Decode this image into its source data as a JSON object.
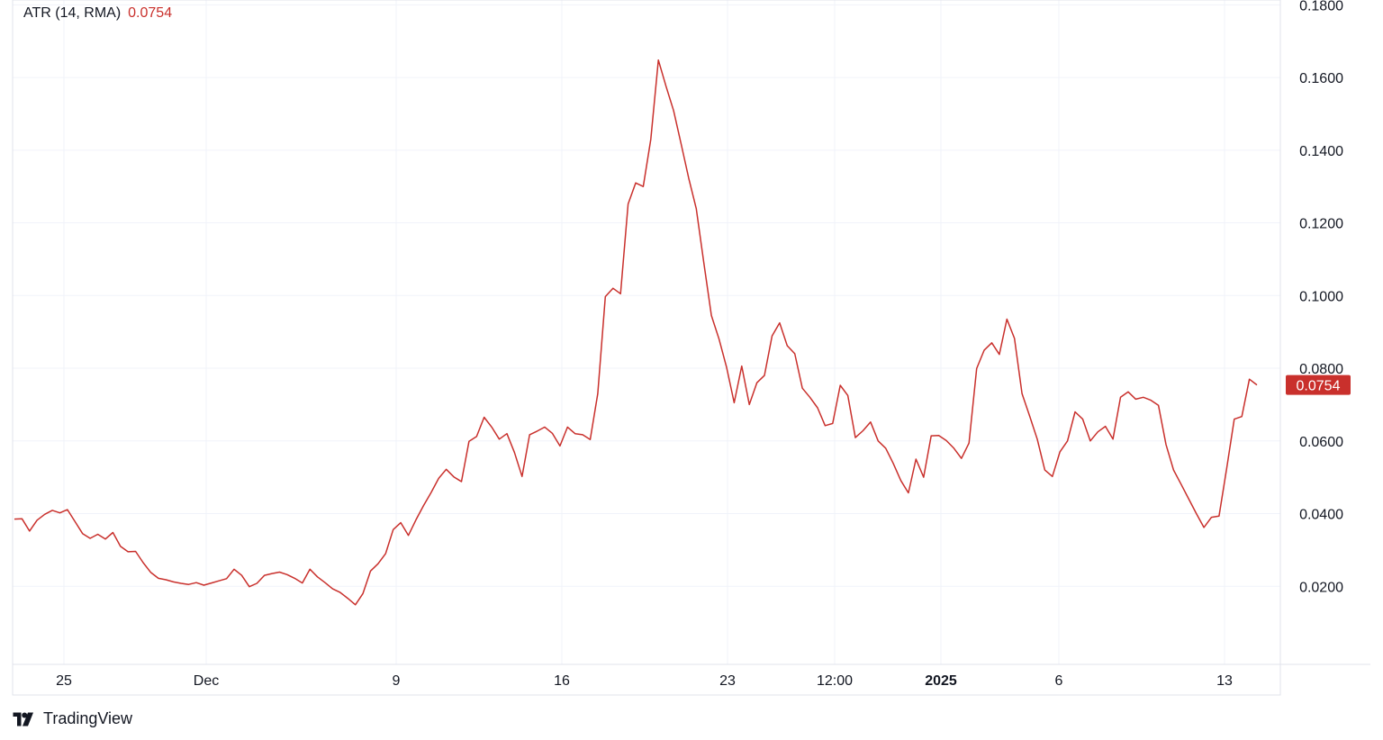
{
  "indicator": {
    "name": "ATR (14, RMA)",
    "value": "0.0754"
  },
  "brand": {
    "name": "TradingView"
  },
  "colors": {
    "line": "#c9302c",
    "grid": "#f0f3fa",
    "text": "#131722"
  },
  "chart_data": {
    "type": "line",
    "title": "ATR (14, RMA)",
    "xlabel": "",
    "ylabel": "",
    "ylim": [
      0.0,
      0.18
    ],
    "y_ticks": [
      "0.0200",
      "0.0400",
      "0.0600",
      "0.0800",
      "0.1000",
      "0.1200",
      "0.1400",
      "0.1600",
      "0.1800"
    ],
    "x_ticks": [
      "25",
      "Dec",
      "9",
      "16",
      "23",
      "12:00",
      "2025",
      "6",
      "13"
    ],
    "last_value_label": "0.0754",
    "grid": true,
    "series": [
      {
        "values": [
          0.0385,
          0.0386,
          0.0352,
          0.0382,
          0.0398,
          0.0409,
          0.0402,
          0.0411,
          0.0378,
          0.0345,
          0.0332,
          0.0343,
          0.033,
          0.0348,
          0.031,
          0.0295,
          0.0296,
          0.0265,
          0.0238,
          0.0222,
          0.0218,
          0.0212,
          0.0208,
          0.0205,
          0.021,
          0.0203,
          0.0209,
          0.0215,
          0.0221,
          0.0247,
          0.023,
          0.0199,
          0.0208,
          0.023,
          0.0235,
          0.0239,
          0.0232,
          0.0222,
          0.0209,
          0.0247,
          0.0226,
          0.021,
          0.0193,
          0.0183,
          0.0167,
          0.0149,
          0.018,
          0.0242,
          0.0262,
          0.029,
          0.0356,
          0.0375,
          0.034,
          0.0383,
          0.0422,
          0.0458,
          0.0497,
          0.0522,
          0.0501,
          0.0488,
          0.0599,
          0.0612,
          0.0665,
          0.0638,
          0.0605,
          0.062,
          0.0568,
          0.0502,
          0.0617,
          0.0627,
          0.0638,
          0.0621,
          0.0586,
          0.0638,
          0.062,
          0.0617,
          0.0604,
          0.073,
          0.0997,
          0.102,
          0.1005,
          0.1252,
          0.131,
          0.13,
          0.143,
          0.1648,
          0.1576,
          0.1509,
          0.1417,
          0.1323,
          0.1239,
          0.109,
          0.0945,
          0.088,
          0.0802,
          0.0705,
          0.0806,
          0.07,
          0.076,
          0.078,
          0.0889,
          0.0925,
          0.0862,
          0.084,
          0.0745,
          0.072,
          0.0691,
          0.0642,
          0.0648,
          0.0753,
          0.0725,
          0.0609,
          0.0628,
          0.0652,
          0.06,
          0.058,
          0.0538,
          0.0491,
          0.0457,
          0.055,
          0.05,
          0.0614,
          0.0615,
          0.0601,
          0.058,
          0.0552,
          0.0594,
          0.0799,
          0.085,
          0.087,
          0.0838,
          0.0935,
          0.0882,
          0.073,
          0.0668,
          0.0605,
          0.052,
          0.0502,
          0.057,
          0.06,
          0.068,
          0.066,
          0.06,
          0.0625,
          0.064,
          0.0605,
          0.072,
          0.0735,
          0.0715,
          0.072,
          0.0712,
          0.0698,
          0.059,
          0.052,
          0.048,
          0.044,
          0.04,
          0.0362,
          0.039,
          0.0393,
          0.0523,
          0.066,
          0.0667,
          0.077,
          0.0754
        ]
      }
    ]
  }
}
